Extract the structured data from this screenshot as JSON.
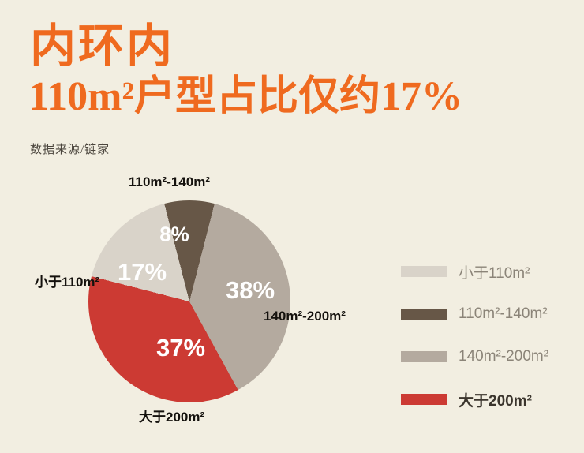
{
  "page": {
    "background": "#f2eee1"
  },
  "header": {
    "title": "内环内",
    "subtitle": "110m²户型占比仅约17%",
    "source": "数据来源/链家",
    "accent_color": "#ef6a1f"
  },
  "chart_data": {
    "type": "pie",
    "slices": [
      {
        "label": "小于110m²",
        "value": 17,
        "pct_label": "17%",
        "color": "#d9d3c9"
      },
      {
        "label": "110m²-140m²",
        "value": 8,
        "pct_label": "8%",
        "color": "#675747"
      },
      {
        "label": "140m²-200m²",
        "value": 38,
        "pct_label": "38%",
        "color": "#b4aa9f"
      },
      {
        "label": "大于200m²",
        "value": 37,
        "pct_label": "37%",
        "color": "#cc3a33"
      }
    ],
    "draw_order": [
      1,
      2,
      3,
      0
    ],
    "start_angle_deg": -14.4,
    "legend_position": "right",
    "value_labels_inside": true
  }
}
